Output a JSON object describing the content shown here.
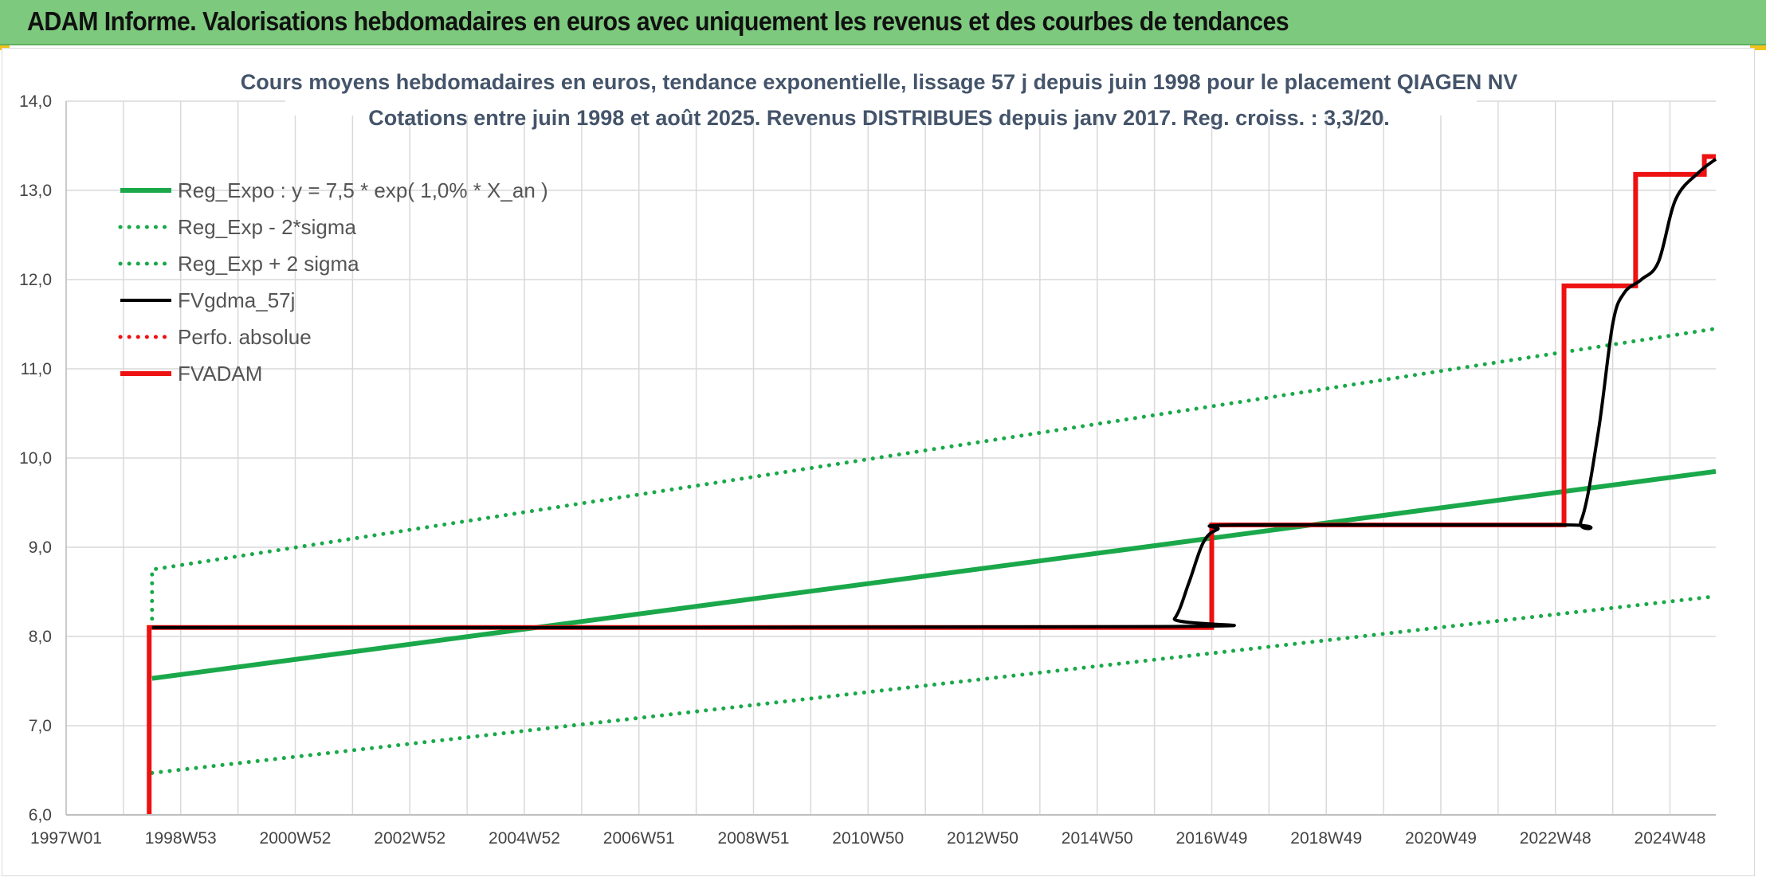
{
  "header": {
    "title": "ADAM Informe. Valorisations hebdomadaires en euros avec uniquement les revenus et des courbes de tendances"
  },
  "colors": {
    "header_bg": "#7dc97d",
    "reg_green": "#1aa84a",
    "adam_red": "#ee1111",
    "smooth_black": "#000000"
  },
  "chart_data": {
    "type": "line",
    "title_lines": [
      "Cours moyens hebdomadaires en euros, tendance exponentielle, lissage 57 j depuis juin 1998 pour le placement QIAGEN NV",
      "Cotations entre juin 1998 et août 2025. Revenus DISTRIBUES depuis janv 2017. Reg. croiss. : 3,3/20."
    ],
    "xlabel": "",
    "ylabel": "",
    "x_range": [
      1997.0,
      2025.8
    ],
    "ylim": [
      6.0,
      14.0
    ],
    "y_ticks": [
      "6,0",
      "7,0",
      "8,0",
      "9,0",
      "10,0",
      "11,0",
      "12,0",
      "13,0",
      "14,0"
    ],
    "x_ticks": [
      {
        "label": "1997W01",
        "x": 1997.0
      },
      {
        "label": "1998W53",
        "x": 1999.0
      },
      {
        "label": "2000W52",
        "x": 2001.0
      },
      {
        "label": "2002W52",
        "x": 2003.0
      },
      {
        "label": "2004W52",
        "x": 2005.0
      },
      {
        "label": "2006W51",
        "x": 2007.0
      },
      {
        "label": "2008W51",
        "x": 2009.0
      },
      {
        "label": "2010W50",
        "x": 2011.0
      },
      {
        "label": "2012W50",
        "x": 2013.0
      },
      {
        "label": "2014W50",
        "x": 2015.0
      },
      {
        "label": "2016W49",
        "x": 2017.0
      },
      {
        "label": "2018W49",
        "x": 2019.0
      },
      {
        "label": "2020W49",
        "x": 2021.0
      },
      {
        "label": "2022W48",
        "x": 2023.0
      },
      {
        "label": "2024W48",
        "x": 2025.0
      }
    ],
    "grid": true,
    "legend_position": "top-left",
    "series": [
      {
        "name": "Reg_Expo : y = 7,5 * exp( 1,0% *  X_an )",
        "style": "solid-thick",
        "color": "#1aa84a",
        "points": [
          [
            1998.5,
            7.53
          ],
          [
            2025.8,
            9.85
          ]
        ]
      },
      {
        "name": "Reg_Exp - 2*sigma",
        "style": "dotted",
        "color": "#1aa84a",
        "points": [
          [
            1998.5,
            6.47
          ],
          [
            2025.8,
            8.45
          ]
        ]
      },
      {
        "name": "Reg_Exp + 2 sigma",
        "style": "dotted",
        "color": "#1aa84a",
        "points": [
          [
            1998.5,
            8.1
          ],
          [
            1998.5,
            8.75
          ],
          [
            2025.8,
            11.45
          ]
        ]
      },
      {
        "name": "FVgdma_57j",
        "style": "solid",
        "color": "#000000",
        "points": [
          [
            1998.5,
            8.1
          ],
          [
            2016.0,
            8.11
          ],
          [
            2016.35,
            8.2
          ],
          [
            2016.6,
            8.6
          ],
          [
            2016.85,
            9.05
          ],
          [
            2017.1,
            9.2
          ],
          [
            2017.5,
            9.25
          ],
          [
            2023.1,
            9.25
          ],
          [
            2023.45,
            9.3
          ],
          [
            2023.75,
            10.3
          ],
          [
            2024.0,
            11.5
          ],
          [
            2024.2,
            11.85
          ],
          [
            2024.5,
            12.0
          ],
          [
            2024.8,
            12.2
          ],
          [
            2025.1,
            12.9
          ],
          [
            2025.5,
            13.2
          ],
          [
            2025.8,
            13.35
          ]
        ]
      },
      {
        "name": "Perfo. absolue",
        "style": "dotted",
        "color": "#ee1111",
        "points": []
      },
      {
        "name": "FVADAM",
        "style": "solid-thick",
        "color": "#ee1111",
        "points": [
          [
            1998.45,
            6.0
          ],
          [
            1998.45,
            8.1
          ],
          [
            2017.0,
            8.1
          ],
          [
            2017.0,
            9.25
          ],
          [
            2023.15,
            9.25
          ],
          [
            2023.15,
            11.93
          ],
          [
            2024.4,
            11.93
          ],
          [
            2024.4,
            13.18
          ],
          [
            2025.6,
            13.18
          ],
          [
            2025.6,
            13.38
          ],
          [
            2025.8,
            13.38
          ]
        ]
      }
    ]
  }
}
